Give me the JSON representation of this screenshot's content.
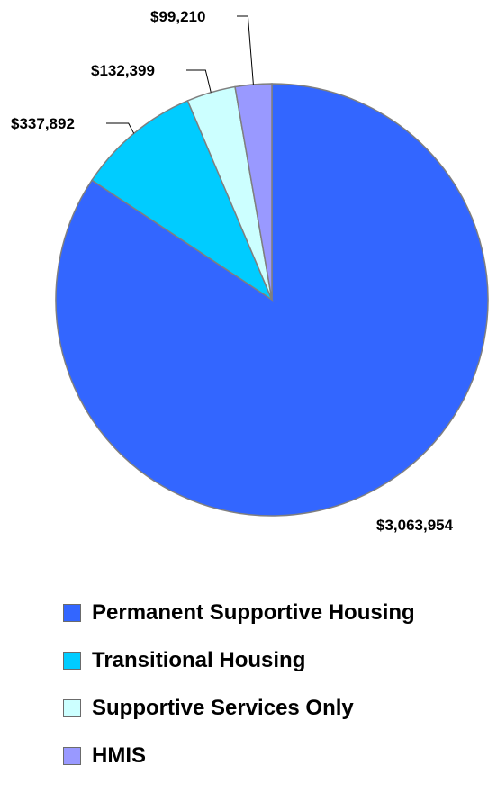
{
  "chart_data": {
    "type": "pie",
    "title": "",
    "start_angle_deg": 0,
    "direction": "clockwise",
    "legend_position": "bottom",
    "slices": [
      {
        "name": "Permanent Supportive Housing",
        "value": 3063954,
        "label": "$3,063,954",
        "color": "#3366ff"
      },
      {
        "name": "Transitional Housing",
        "value": 337892,
        "label": "$337,892",
        "color": "#00ccff"
      },
      {
        "name": "Supportive Services Only",
        "value": 132399,
        "label": "$132,399",
        "color": "#ccffff"
      },
      {
        "name": "HMIS",
        "value": 99210,
        "label": "$99,210",
        "color": "#9999ff"
      }
    ],
    "border_color": "#7f7f7f"
  }
}
